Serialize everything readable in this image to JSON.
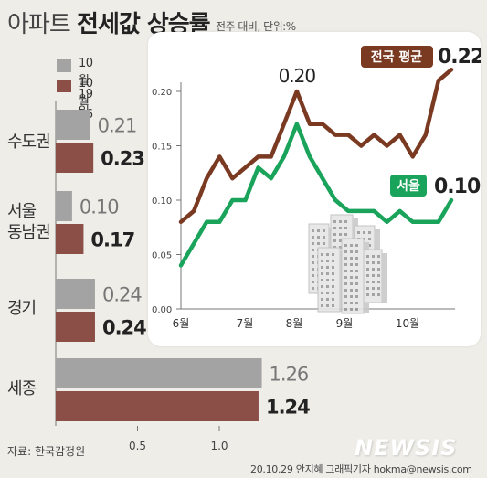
{
  "header": {
    "title_light": "아파트",
    "title_bold": "전세값 상승률",
    "subtitle": "전주 대비, 단위:%"
  },
  "legend": [
    {
      "label": "10월19일",
      "color": "#a3a3a3"
    },
    {
      "label": "10월26일",
      "color": "#8b4f48"
    }
  ],
  "chart_data": [
    {
      "type": "bar",
      "orientation": "horizontal",
      "categories": [
        "수도권",
        "서울\n동남권",
        "경기",
        "세종"
      ],
      "series": [
        {
          "name": "10월19일",
          "values": [
            0.21,
            0.1,
            0.24,
            1.26
          ],
          "color": "#a3a3a3"
        },
        {
          "name": "10월26일",
          "values": [
            0.23,
            0.17,
            0.24,
            1.24
          ],
          "color": "#8b4f48"
        }
      ],
      "x_ticks": [
        "0.5",
        "1.0"
      ],
      "xlim": [
        0,
        1.3
      ]
    },
    {
      "type": "line",
      "x_ticks": [
        "6월",
        "7월",
        "8월",
        "9월",
        "10월"
      ],
      "y_ticks": [
        "0.00",
        "0.05",
        "0.10",
        "0.15",
        "0.20"
      ],
      "ylim": [
        0,
        0.25
      ],
      "series": [
        {
          "name": "전국 평균",
          "color": "#7a3a22",
          "values": [
            0.08,
            0.09,
            0.12,
            0.14,
            0.12,
            0.13,
            0.14,
            0.14,
            0.17,
            0.2,
            0.17,
            0.17,
            0.16,
            0.16,
            0.15,
            0.16,
            0.15,
            0.16,
            0.14,
            0.16,
            0.21,
            0.22
          ],
          "end_label": "0.22",
          "peak_label": "0.20"
        },
        {
          "name": "서울",
          "color": "#1aa35a",
          "values": [
            0.04,
            0.06,
            0.08,
            0.08,
            0.1,
            0.1,
            0.13,
            0.12,
            0.14,
            0.17,
            0.14,
            0.12,
            0.1,
            0.09,
            0.09,
            0.09,
            0.08,
            0.09,
            0.08,
            0.08,
            0.08,
            0.1
          ],
          "end_label": "0.10"
        }
      ]
    }
  ],
  "footer": {
    "source": "자료: 한국감정원",
    "credit": "20.10.29 안지혜 그래픽기자 hokma@newsis.com",
    "watermark": "NEWSIS"
  }
}
